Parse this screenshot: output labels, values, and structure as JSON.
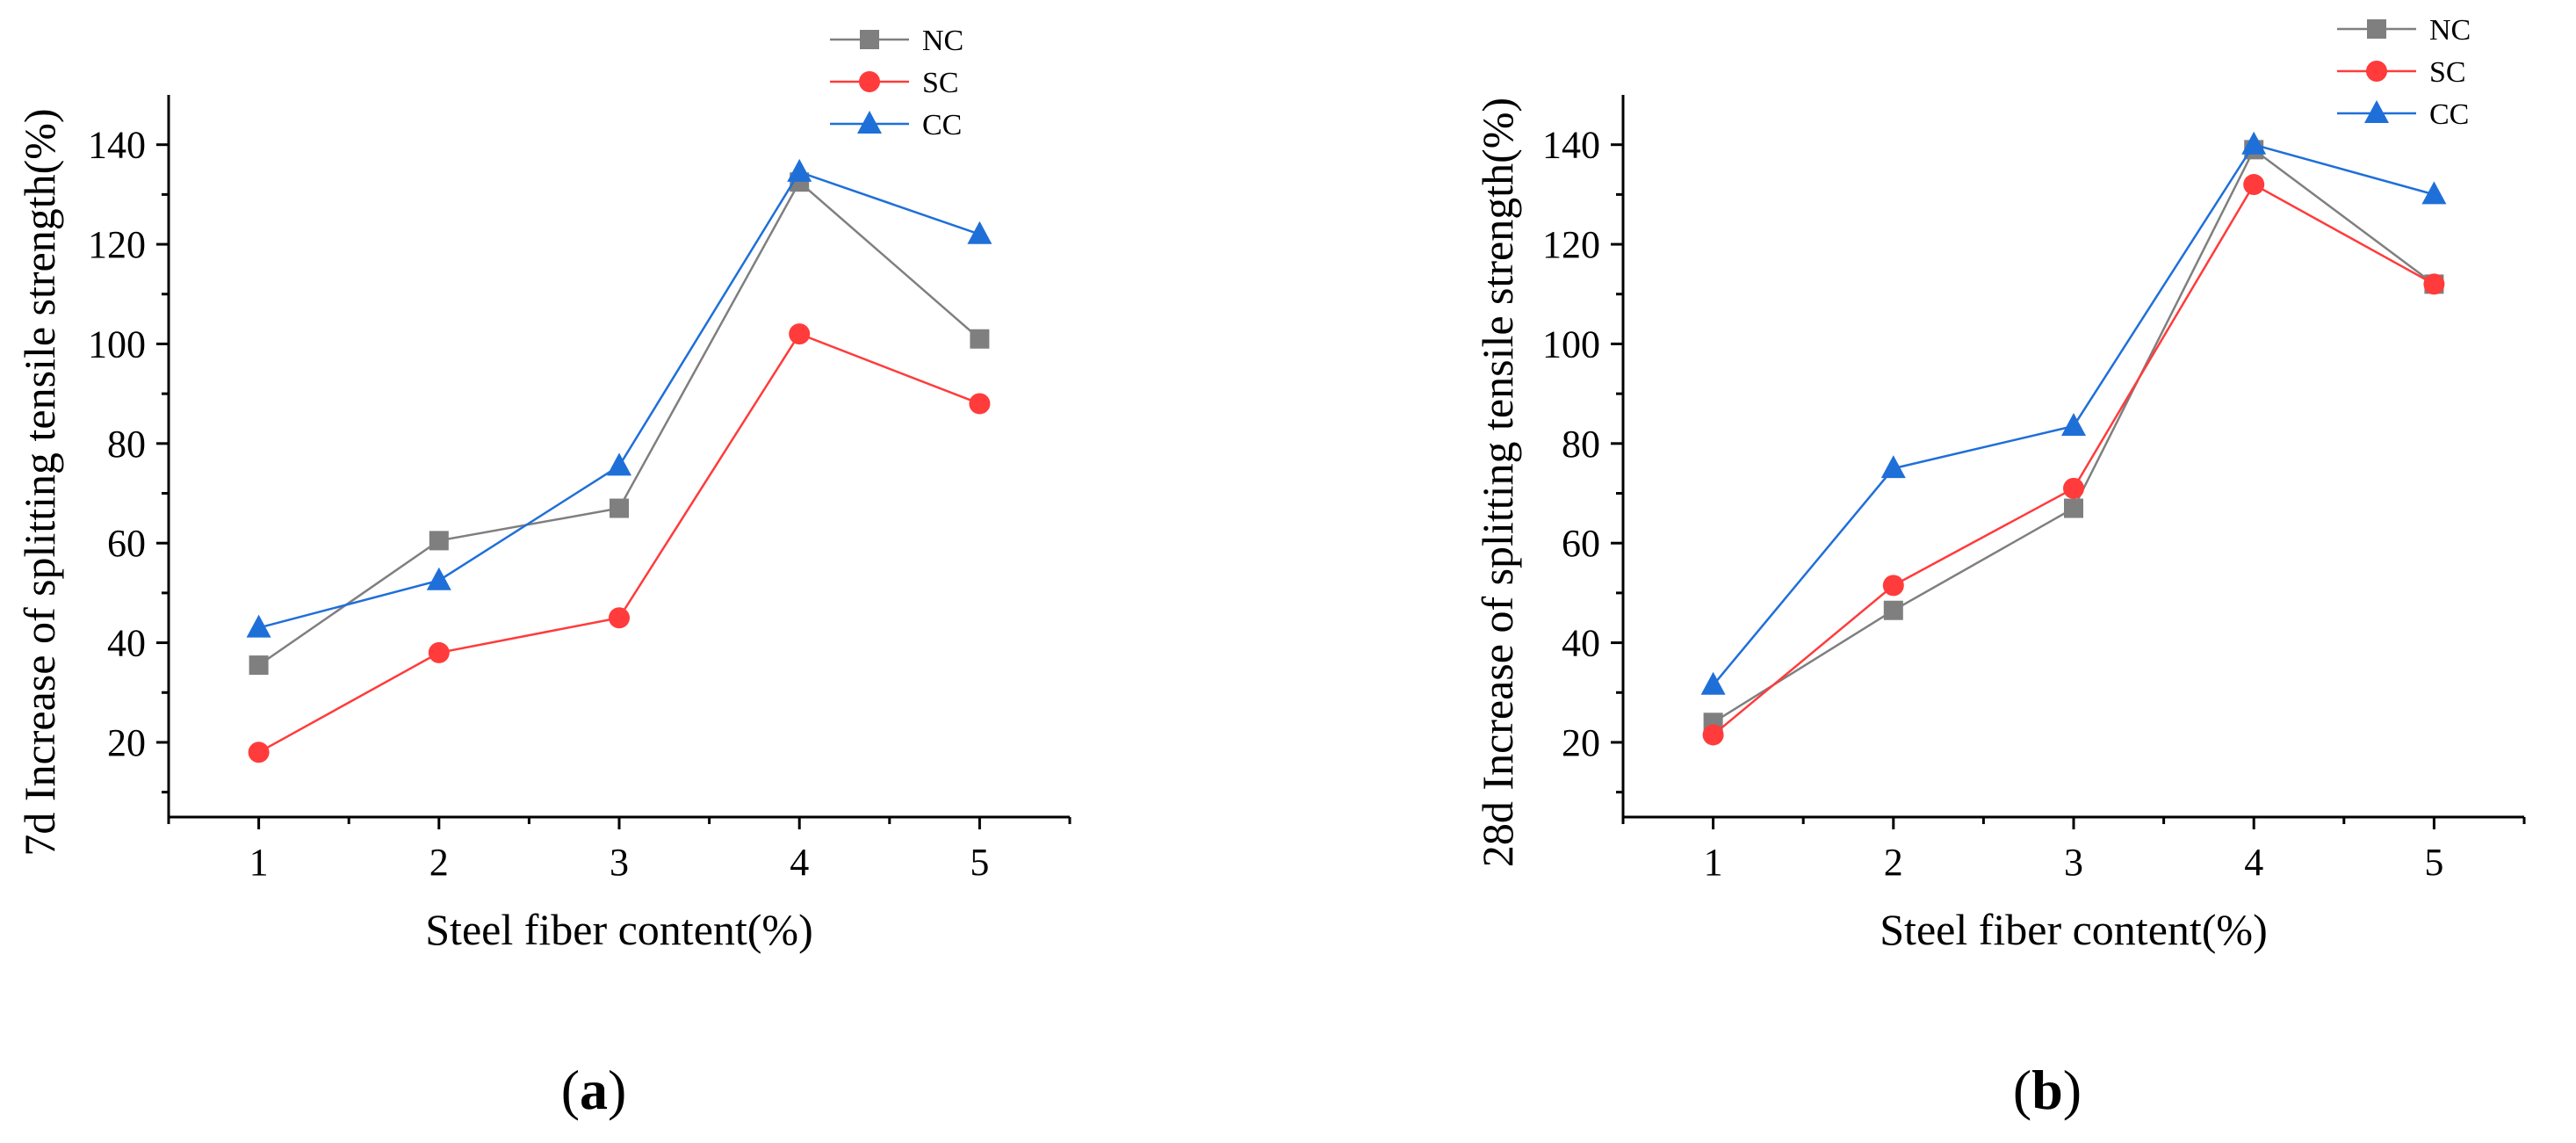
{
  "chart_data": [
    {
      "type": "line",
      "panel": "a",
      "panel_label": "a",
      "xlabel": "Steel fiber content(%)",
      "ylabel": "7d Increase of splitting tensile strength(%)",
      "x": [
        1,
        2,
        3,
        4,
        5
      ],
      "xlim": [
        0.5,
        5.5
      ],
      "ylim": [
        5,
        150
      ],
      "yticks": [
        20,
        40,
        60,
        80,
        100,
        120,
        140
      ],
      "legend_position": "top-right",
      "series": [
        {
          "name": "NC",
          "color": "#7f7f7f",
          "marker": "square",
          "values": [
            35.5,
            60.5,
            67.0,
            132.5,
            101.0
          ]
        },
        {
          "name": "SC",
          "color": "#ff3b3b",
          "marker": "circle",
          "values": [
            18.0,
            38.0,
            45.0,
            102.0,
            88.0
          ]
        },
        {
          "name": "CC",
          "color": "#1f6fd9",
          "marker": "triangle",
          "values": [
            43.0,
            52.5,
            75.5,
            134.5,
            122.0
          ]
        }
      ]
    },
    {
      "type": "line",
      "panel": "b",
      "panel_label": "b",
      "xlabel": "Steel fiber content(%)",
      "ylabel": "28d Increase of splitting tensile strength(%)",
      "x": [
        1,
        2,
        3,
        4,
        5
      ],
      "xlim": [
        0.5,
        5.5
      ],
      "ylim": [
        5,
        150
      ],
      "yticks": [
        20,
        40,
        60,
        80,
        100,
        120,
        140
      ],
      "legend_position": "top-right",
      "series": [
        {
          "name": "NC",
          "color": "#7f7f7f",
          "marker": "square",
          "values": [
            24.0,
            46.5,
            67.0,
            139.0,
            112.0
          ]
        },
        {
          "name": "SC",
          "color": "#ff3b3b",
          "marker": "circle",
          "values": [
            21.5,
            51.5,
            71.0,
            132.0,
            112.0
          ]
        },
        {
          "name": "CC",
          "color": "#1f6fd9",
          "marker": "triangle",
          "values": [
            31.5,
            75.0,
            83.5,
            140.0,
            130.0
          ]
        }
      ]
    }
  ]
}
